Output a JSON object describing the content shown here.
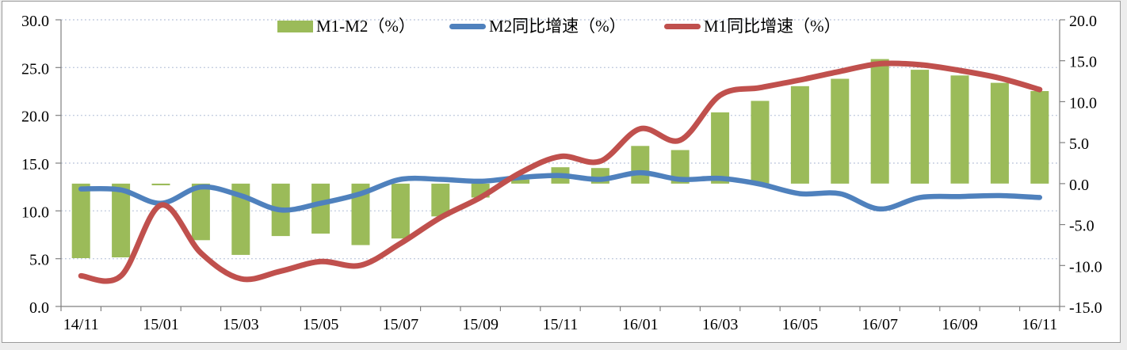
{
  "chart_data": {
    "type": "combo-bar-line",
    "title": "",
    "categories": [
      "14/11",
      "14/12",
      "15/01",
      "15/02",
      "15/03",
      "15/04",
      "15/05",
      "15/06",
      "15/07",
      "15/08",
      "15/09",
      "15/10",
      "15/11",
      "15/12",
      "16/01",
      "16/02",
      "16/03",
      "16/04",
      "16/05",
      "16/06",
      "16/07",
      "16/08",
      "16/09",
      "16/10",
      "16/11"
    ],
    "x_axis": {
      "tick_label_every": 2,
      "labels_shown": [
        "14/11",
        "15/01",
        "15/03",
        "15/05",
        "15/07",
        "15/09",
        "15/11",
        "16/01",
        "16/03",
        "16/05",
        "16/07",
        "16/09",
        "16/11"
      ]
    },
    "left_axis": {
      "min": 0,
      "max": 30,
      "step": 5,
      "tick_labels": [
        "0.0",
        "5.0",
        "10.0",
        "15.0",
        "20.0",
        "25.0",
        "30.0"
      ]
    },
    "right_axis": {
      "min": -15,
      "max": 20,
      "step": 5,
      "tick_labels": [
        "-15.0",
        "-10.0",
        "-5.0",
        "0.0",
        "5.0",
        "10.0",
        "15.0",
        "20.0"
      ]
    },
    "grid": {
      "horizontal": "dotted",
      "color": "#c0cade"
    },
    "axis_color": "#808080",
    "text_color": "#000000",
    "legend_position": "top",
    "series": [
      {
        "name": "M1-M2（%）",
        "type": "bar",
        "axis": "right",
        "color": "#9BBB59",
        "values": [
          -9.1,
          -9.0,
          -0.2,
          -6.9,
          -8.7,
          -6.4,
          -6.1,
          -7.5,
          -6.7,
          -4.0,
          -1.7,
          0.5,
          2.0,
          1.9,
          4.6,
          4.1,
          8.7,
          10.1,
          11.9,
          12.8,
          15.2,
          13.9,
          13.2,
          12.3,
          11.3
        ]
      },
      {
        "name": "M2同比增速（%）",
        "type": "line",
        "axis": "left",
        "color": "#4F81BD",
        "values": [
          12.3,
          12.2,
          10.8,
          12.5,
          11.6,
          10.1,
          10.8,
          11.8,
          13.3,
          13.3,
          13.1,
          13.5,
          13.7,
          13.3,
          14.0,
          13.3,
          13.4,
          12.8,
          11.8,
          11.8,
          10.2,
          11.4,
          11.5,
          11.6,
          11.4
        ]
      },
      {
        "name": "M1同比增速（%）",
        "type": "line",
        "axis": "left",
        "color": "#C0504D",
        "values": [
          3.2,
          3.2,
          10.6,
          5.6,
          2.9,
          3.7,
          4.7,
          4.3,
          6.6,
          9.3,
          11.4,
          14.0,
          15.7,
          15.2,
          18.6,
          17.4,
          22.1,
          22.9,
          23.7,
          24.6,
          25.4,
          25.3,
          24.7,
          23.9,
          22.7
        ]
      }
    ]
  }
}
